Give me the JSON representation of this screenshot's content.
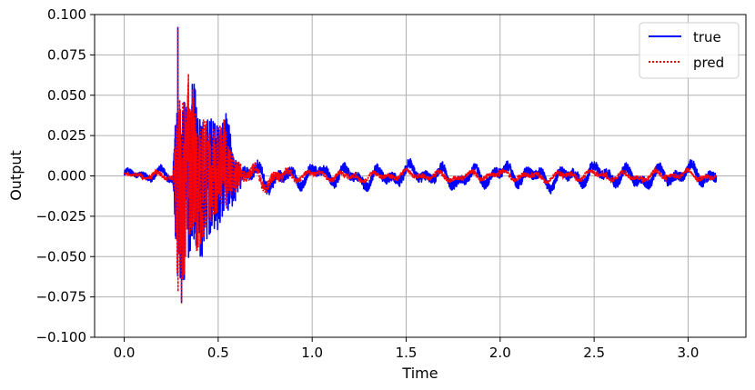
{
  "chart_data": {
    "type": "line",
    "title": "",
    "xlabel": "Time",
    "ylabel": "Output",
    "xlim": [
      -0.1575,
      3.3075
    ],
    "ylim": [
      -0.1,
      0.1
    ],
    "x_ticks": [
      0.0,
      0.5,
      1.0,
      1.5,
      2.0,
      2.5,
      3.0
    ],
    "x_tick_labels": [
      "0.0",
      "0.5",
      "1.0",
      "1.5",
      "2.0",
      "2.5",
      "3.0"
    ],
    "y_ticks": [
      -0.1,
      -0.075,
      -0.05,
      -0.025,
      0.0,
      0.025,
      0.05,
      0.075,
      0.1
    ],
    "y_tick_labels": [
      "−0.100",
      "−0.075",
      "−0.050",
      "−0.025",
      "0.000",
      "0.025",
      "0.050",
      "0.075",
      "0.100"
    ],
    "grid": true,
    "legend_position": "top-right",
    "x_range": [
      0.0,
      3.15
    ],
    "series": [
      {
        "name": "true",
        "color": "#0000ff",
        "line_style": "solid",
        "envelope": [
          {
            "x": 0.0,
            "amplitude": 0.005
          },
          {
            "x": 0.26,
            "amplitude": 0.008
          },
          {
            "x": 0.28,
            "amplitude": 0.085
          },
          {
            "x": 0.33,
            "amplitude": 0.075
          },
          {
            "x": 0.38,
            "amplitude": 0.065
          },
          {
            "x": 0.45,
            "amplitude": 0.05
          },
          {
            "x": 0.55,
            "amplitude": 0.04
          },
          {
            "x": 0.6,
            "amplitude": 0.014
          },
          {
            "x": 0.9,
            "amplitude": 0.01
          },
          {
            "x": 3.15,
            "amplitude": 0.01
          }
        ],
        "peak_max": 0.092,
        "peak_min": -0.078
      },
      {
        "name": "pred",
        "color": "#ff0000",
        "line_style": "dotted",
        "envelope": [
          {
            "x": 0.0,
            "amplitude": 0.003
          },
          {
            "x": 0.26,
            "amplitude": 0.005
          },
          {
            "x": 0.28,
            "amplitude": 0.085
          },
          {
            "x": 0.33,
            "amplitude": 0.075
          },
          {
            "x": 0.38,
            "amplitude": 0.06
          },
          {
            "x": 0.45,
            "amplitude": 0.045
          },
          {
            "x": 0.55,
            "amplitude": 0.035
          },
          {
            "x": 0.6,
            "amplitude": 0.012
          },
          {
            "x": 0.85,
            "amplitude": 0.01
          },
          {
            "x": 0.9,
            "amplitude": 0.005
          },
          {
            "x": 3.15,
            "amplitude": 0.005
          }
        ],
        "peak_max": 0.092,
        "peak_min": -0.079
      }
    ]
  }
}
